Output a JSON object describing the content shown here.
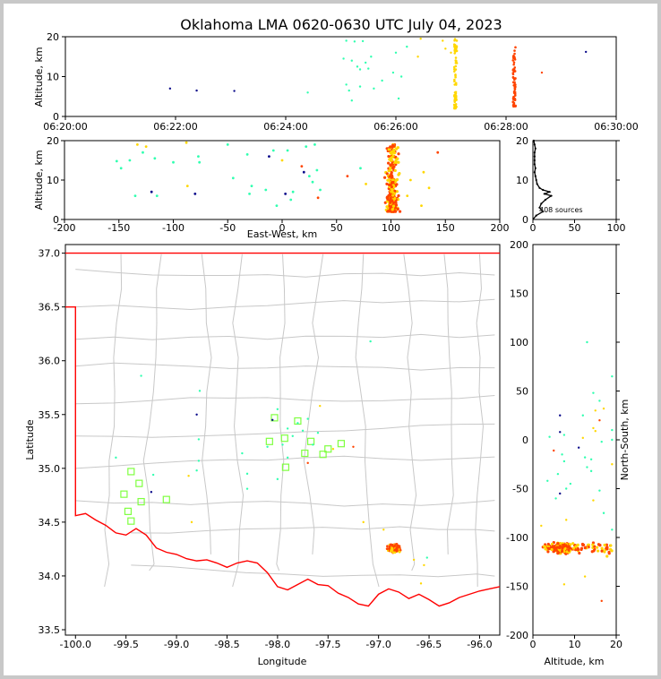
{
  "title": "Oklahoma LMA 0620-0630 UTC July 04, 2023",
  "source_count_label": "408 sources",
  "colors": {
    "early": "#0a0a8a",
    "mid": "#30ffb0",
    "late": "#ffd700",
    "latest": "#ff4400",
    "stations": "#7fff40",
    "state_border": "#ff0000",
    "county": "#c8c8c8",
    "histogram": "#000000"
  },
  "chart_data": [
    {
      "id": "time_height",
      "type": "scatter",
      "ylabel": "Altitude, km",
      "xlim": [
        "06:20:00",
        "06:30:00"
      ],
      "ylim": [
        0,
        20
      ],
      "xticks": [
        "06:20:00",
        "06:22:00",
        "06:24:00",
        "06:26:00",
        "06:28:00",
        "06:30:00"
      ],
      "yticks": [
        0,
        10,
        20
      ],
      "points": [
        {
          "t": "06:21:54",
          "z": 7.0,
          "c": "early"
        },
        {
          "t": "06:22:23",
          "z": 6.5,
          "c": "early"
        },
        {
          "t": "06:23:04",
          "z": 6.4,
          "c": "early"
        },
        {
          "t": "06:24:24",
          "z": 6.0,
          "c": "mid"
        },
        {
          "t": "06:25:06",
          "z": 19.0,
          "c": "mid"
        },
        {
          "t": "06:25:15",
          "z": 18.8,
          "c": "mid"
        },
        {
          "t": "06:25:24",
          "z": 18.9,
          "c": "mid"
        },
        {
          "t": "06:25:03",
          "z": 14.5,
          "c": "mid"
        },
        {
          "t": "06:25:12",
          "z": 14.0,
          "c": "mid"
        },
        {
          "t": "06:25:18",
          "z": 12.5,
          "c": "mid"
        },
        {
          "t": "06:25:21",
          "z": 11.8,
          "c": "mid"
        },
        {
          "t": "06:25:27",
          "z": 13.5,
          "c": "mid"
        },
        {
          "t": "06:25:30",
          "z": 12.0,
          "c": "mid"
        },
        {
          "t": "06:25:33",
          "z": 15.0,
          "c": "mid"
        },
        {
          "t": "06:25:06",
          "z": 8.0,
          "c": "mid"
        },
        {
          "t": "06:25:09",
          "z": 6.5,
          "c": "mid"
        },
        {
          "t": "06:25:21",
          "z": 7.5,
          "c": "mid"
        },
        {
          "t": "06:25:36",
          "z": 7.0,
          "c": "mid"
        },
        {
          "t": "06:25:45",
          "z": 9.0,
          "c": "mid"
        },
        {
          "t": "06:25:12",
          "z": 4.0,
          "c": "mid"
        },
        {
          "t": "06:26:06",
          "z": 10.0,
          "c": "mid"
        },
        {
          "t": "06:26:03",
          "z": 4.5,
          "c": "mid"
        },
        {
          "t": "06:25:57",
          "z": 11.0,
          "c": "mid"
        },
        {
          "t": "06:26:00",
          "z": 16.0,
          "c": "mid"
        },
        {
          "t": "06:26:12",
          "z": 17.5,
          "c": "mid"
        },
        {
          "t": "06:26:24",
          "z": 15.0,
          "c": "late"
        },
        {
          "t": "06:26:27",
          "z": 19.5,
          "c": "late"
        },
        {
          "t": "06:26:51",
          "z": 19.0,
          "c": "late"
        },
        {
          "t": "06:26:54",
          "z": 17.0,
          "c": "late"
        },
        {
          "t": "06:27:00",
          "z": 16.0,
          "c": "late"
        },
        {
          "t": "06:28:39",
          "z": 11.0,
          "c": "latest"
        },
        {
          "t": "06:29:27",
          "z": 16.2,
          "c": "early"
        }
      ],
      "columns": [
        {
          "t": "06:27:05",
          "zmin": 2.0,
          "zmax": 19.5,
          "c": "late"
        },
        {
          "t": "06:28:09",
          "zmin": 2.5,
          "zmax": 17.5,
          "c": "latest"
        }
      ]
    },
    {
      "id": "ew_height",
      "type": "scatter",
      "xlabel": "East-West, km",
      "ylabel": "Altitude, km",
      "xlim": [
        -200,
        200
      ],
      "ylim": [
        0,
        20
      ],
      "xticks": [
        -200,
        -150,
        -100,
        -50,
        0,
        50,
        100,
        150,
        200
      ],
      "yticks": [
        0,
        10,
        20
      ],
      "points": [
        {
          "x": -152,
          "z": 14.8,
          "c": "mid"
        },
        {
          "x": -148,
          "z": 13.0,
          "c": "mid"
        },
        {
          "x": -140,
          "z": 15.0,
          "c": "mid"
        },
        {
          "x": -135,
          "z": 6.0,
          "c": "mid"
        },
        {
          "x": -133,
          "z": 19.0,
          "c": "late"
        },
        {
          "x": -128,
          "z": 17.0,
          "c": "mid"
        },
        {
          "x": -125,
          "z": 18.5,
          "c": "late"
        },
        {
          "x": -120,
          "z": 7.0,
          "c": "early"
        },
        {
          "x": -117,
          "z": 15.5,
          "c": "mid"
        },
        {
          "x": -115,
          "z": 6.0,
          "c": "mid"
        },
        {
          "x": -100,
          "z": 14.5,
          "c": "mid"
        },
        {
          "x": -88,
          "z": 19.5,
          "c": "late"
        },
        {
          "x": -87,
          "z": 8.5,
          "c": "late"
        },
        {
          "x": -80,
          "z": 6.5,
          "c": "early"
        },
        {
          "x": -77,
          "z": 16.0,
          "c": "mid"
        },
        {
          "x": -76,
          "z": 14.5,
          "c": "mid"
        },
        {
          "x": -50,
          "z": 19.0,
          "c": "mid"
        },
        {
          "x": -45,
          "z": 10.5,
          "c": "mid"
        },
        {
          "x": -32,
          "z": 16.5,
          "c": "mid"
        },
        {
          "x": -30,
          "z": 6.5,
          "c": "mid"
        },
        {
          "x": -28,
          "z": 8.5,
          "c": "mid"
        },
        {
          "x": -15,
          "z": 7.5,
          "c": "mid"
        },
        {
          "x": -12,
          "z": 16.0,
          "c": "early"
        },
        {
          "x": -8,
          "z": 17.5,
          "c": "mid"
        },
        {
          "x": -5,
          "z": 3.5,
          "c": "mid"
        },
        {
          "x": 0,
          "z": 15.0,
          "c": "late"
        },
        {
          "x": 3,
          "z": 6.5,
          "c": "early"
        },
        {
          "x": 5,
          "z": 17.5,
          "c": "mid"
        },
        {
          "x": 8,
          "z": 5.0,
          "c": "mid"
        },
        {
          "x": 10,
          "z": 7.0,
          "c": "mid"
        },
        {
          "x": 18,
          "z": 13.5,
          "c": "latest"
        },
        {
          "x": 20,
          "z": 12.0,
          "c": "early"
        },
        {
          "x": 22,
          "z": 18.5,
          "c": "mid"
        },
        {
          "x": 25,
          "z": 11.0,
          "c": "mid"
        },
        {
          "x": 28,
          "z": 9.5,
          "c": "mid"
        },
        {
          "x": 30,
          "z": 19.0,
          "c": "mid"
        },
        {
          "x": 32,
          "z": 12.5,
          "c": "mid"
        },
        {
          "x": 33,
          "z": 5.5,
          "c": "latest"
        },
        {
          "x": 35,
          "z": 7.5,
          "c": "mid"
        },
        {
          "x": 60,
          "z": 11.0,
          "c": "latest"
        },
        {
          "x": 72,
          "z": 13.0,
          "c": "mid"
        },
        {
          "x": 77,
          "z": 9.0,
          "c": "late"
        },
        {
          "x": 130,
          "z": 12.0,
          "c": "late"
        },
        {
          "x": 128,
          "z": 3.5,
          "c": "late"
        },
        {
          "x": 135,
          "z": 8.0,
          "c": "late"
        },
        {
          "x": 143,
          "z": 17.0,
          "c": "latest"
        },
        {
          "x": 118,
          "z": 10.0,
          "c": "late"
        },
        {
          "x": 115,
          "z": 6.0,
          "c": "late"
        }
      ],
      "cluster": {
        "x_center": 101,
        "x_spread": 10,
        "zmin": 2,
        "zmax": 19,
        "count": 300
      }
    },
    {
      "id": "altitude_histogram",
      "type": "line",
      "xlim": [
        0,
        100
      ],
      "ylim": [
        0,
        20
      ],
      "xticks": [
        0,
        50,
        100
      ],
      "yticks": [
        0,
        10,
        20
      ],
      "profile": [
        {
          "z": 1,
          "n": 4
        },
        {
          "z": 2,
          "n": 12
        },
        {
          "z": 3,
          "n": 8
        },
        {
          "z": 4,
          "n": 10
        },
        {
          "z": 5,
          "n": 15
        },
        {
          "z": 6,
          "n": 22
        },
        {
          "z": 6.5,
          "n": 14
        },
        {
          "z": 7,
          "n": 20
        },
        {
          "z": 7.5,
          "n": 12
        },
        {
          "z": 8,
          "n": 8
        },
        {
          "z": 9,
          "n": 5
        },
        {
          "z": 10,
          "n": 4
        },
        {
          "z": 11,
          "n": 3
        },
        {
          "z": 12,
          "n": 2
        },
        {
          "z": 13,
          "n": 3
        },
        {
          "z": 14,
          "n": 2
        },
        {
          "z": 15,
          "n": 2
        },
        {
          "z": 16,
          "n": 2
        },
        {
          "z": 17,
          "n": 2
        },
        {
          "z": 18,
          "n": 3
        },
        {
          "z": 19,
          "n": 2
        },
        {
          "z": 20,
          "n": 1
        }
      ]
    },
    {
      "id": "plan_view",
      "type": "scatter",
      "xlabel": "Longitude",
      "ylabel": "Latitude",
      "xlim": [
        -100.1,
        -95.8
      ],
      "ylim": [
        33.45,
        37.08
      ],
      "xticks": [
        -100.0,
        -99.5,
        -99.0,
        -98.5,
        -98.0,
        -97.5,
        -97.0,
        -96.5,
        -96.0
      ],
      "yticks": [
        33.5,
        34.0,
        34.5,
        35.0,
        35.5,
        36.0,
        36.5,
        37.0
      ],
      "stations": [
        [
          -99.45,
          34.97
        ],
        [
          -99.37,
          34.86
        ],
        [
          -99.52,
          34.76
        ],
        [
          -99.35,
          34.69
        ],
        [
          -99.48,
          34.6
        ],
        [
          -99.45,
          34.51
        ],
        [
          -99.1,
          34.71
        ],
        [
          -98.03,
          35.47
        ],
        [
          -98.08,
          35.25
        ],
        [
          -97.93,
          35.28
        ],
        [
          -97.92,
          35.01
        ],
        [
          -97.8,
          35.44
        ],
        [
          -97.73,
          35.14
        ],
        [
          -97.67,
          35.25
        ],
        [
          -97.55,
          35.13
        ],
        [
          -97.5,
          35.18
        ],
        [
          -97.37,
          35.23
        ]
      ],
      "points": [
        {
          "x": -98.8,
          "y": 35.5,
          "c": "early"
        },
        {
          "x": -99.25,
          "y": 34.78,
          "c": "early"
        },
        {
          "x": -98.0,
          "y": 35.55,
          "c": "mid"
        },
        {
          "x": -97.8,
          "y": 35.42,
          "c": "mid"
        },
        {
          "x": -97.7,
          "y": 35.46,
          "c": "mid"
        },
        {
          "x": -97.9,
          "y": 35.37,
          "c": "mid"
        },
        {
          "x": -97.75,
          "y": 35.35,
          "c": "mid"
        },
        {
          "x": -97.85,
          "y": 35.3,
          "c": "mid"
        },
        {
          "x": -97.6,
          "y": 35.33,
          "c": "mid"
        },
        {
          "x": -98.1,
          "y": 35.2,
          "c": "mid"
        },
        {
          "x": -97.65,
          "y": 35.22,
          "c": "mid"
        },
        {
          "x": -97.95,
          "y": 35.22,
          "c": "mid"
        },
        {
          "x": -97.7,
          "y": 35.05,
          "c": "latest"
        },
        {
          "x": -98.05,
          "y": 35.45,
          "c": "early"
        },
        {
          "x": -97.45,
          "y": 35.18,
          "c": "late"
        },
        {
          "x": -97.25,
          "y": 35.2,
          "c": "latest"
        },
        {
          "x": -98.35,
          "y": 35.14,
          "c": "mid"
        },
        {
          "x": -98.3,
          "y": 34.95,
          "c": "mid"
        },
        {
          "x": -98.3,
          "y": 34.81,
          "c": "mid"
        },
        {
          "x": -98.0,
          "y": 34.9,
          "c": "mid"
        },
        {
          "x": -98.78,
          "y": 35.27,
          "c": "mid"
        },
        {
          "x": -98.78,
          "y": 35.07,
          "c": "mid"
        },
        {
          "x": -98.8,
          "y": 34.98,
          "c": "mid"
        },
        {
          "x": -99.35,
          "y": 35.86,
          "c": "mid"
        },
        {
          "x": -99.23,
          "y": 34.94,
          "c": "mid"
        },
        {
          "x": -99.6,
          "y": 35.1,
          "c": "mid"
        },
        {
          "x": -98.77,
          "y": 35.72,
          "c": "mid"
        },
        {
          "x": -97.08,
          "y": 36.18,
          "c": "mid"
        },
        {
          "x": -98.85,
          "y": 34.5,
          "c": "late"
        },
        {
          "x": -98.88,
          "y": 34.93,
          "c": "late"
        },
        {
          "x": -97.15,
          "y": 34.5,
          "c": "late"
        },
        {
          "x": -96.65,
          "y": 34.15,
          "c": "late"
        },
        {
          "x": -96.55,
          "y": 34.1,
          "c": "late"
        },
        {
          "x": -96.58,
          "y": 33.93,
          "c": "late"
        },
        {
          "x": -96.95,
          "y": 34.43,
          "c": "late"
        },
        {
          "x": -96.52,
          "y": 34.17,
          "c": "mid"
        },
        {
          "x": -97.9,
          "y": 35.1,
          "c": "mid"
        },
        {
          "x": -97.58,
          "y": 35.58,
          "c": "late"
        }
      ],
      "cluster": {
        "x_center": -96.85,
        "y_center": 34.26,
        "x_spread": 0.09,
        "y_spread": 0.06,
        "count": 220
      }
    },
    {
      "id": "altitude_ns",
      "type": "scatter",
      "xlabel": "Altitude, km",
      "ylabel": "North-South, km",
      "xlim": [
        0,
        20
      ],
      "ylim": [
        -200,
        200
      ],
      "xticks": [
        0,
        10,
        20
      ],
      "yticks": [
        -200,
        -150,
        -100,
        -50,
        0,
        50,
        100,
        150,
        200
      ],
      "points": [
        {
          "x": 13,
          "y": 100,
          "c": "mid"
        },
        {
          "x": 19,
          "y": 65,
          "c": "mid"
        },
        {
          "x": 14.5,
          "y": 48,
          "c": "mid"
        },
        {
          "x": 16,
          "y": 40,
          "c": "mid"
        },
        {
          "x": 17,
          "y": 32,
          "c": "late"
        },
        {
          "x": 15,
          "y": 30,
          "c": "late"
        },
        {
          "x": 6.5,
          "y": 25,
          "c": "early"
        },
        {
          "x": 12,
          "y": 25,
          "c": "mid"
        },
        {
          "x": 16,
          "y": 20,
          "c": "latest"
        },
        {
          "x": 14.5,
          "y": 12,
          "c": "late"
        },
        {
          "x": 19,
          "y": 10,
          "c": "mid"
        },
        {
          "x": 15,
          "y": 9,
          "c": "late"
        },
        {
          "x": 6.5,
          "y": 8,
          "c": "early"
        },
        {
          "x": 7.5,
          "y": 5,
          "c": "mid"
        },
        {
          "x": 4,
          "y": 3,
          "c": "mid"
        },
        {
          "x": 12,
          "y": 2,
          "c": "late"
        },
        {
          "x": 19,
          "y": 0,
          "c": "mid"
        },
        {
          "x": 16.5,
          "y": -2,
          "c": "mid"
        },
        {
          "x": 11,
          "y": -8,
          "c": "early"
        },
        {
          "x": 5,
          "y": -11,
          "c": "latest"
        },
        {
          "x": 7,
          "y": -15,
          "c": "mid"
        },
        {
          "x": 12.5,
          "y": -18,
          "c": "mid"
        },
        {
          "x": 14,
          "y": -20,
          "c": "mid"
        },
        {
          "x": 7.5,
          "y": -22,
          "c": "mid"
        },
        {
          "x": 19,
          "y": -25,
          "c": "late"
        },
        {
          "x": 13,
          "y": -28,
          "c": "mid"
        },
        {
          "x": 14,
          "y": -32,
          "c": "mid"
        },
        {
          "x": 6,
          "y": -35,
          "c": "mid"
        },
        {
          "x": 3.5,
          "y": -42,
          "c": "mid"
        },
        {
          "x": 9,
          "y": -45,
          "c": "mid"
        },
        {
          "x": 8,
          "y": -50,
          "c": "mid"
        },
        {
          "x": 16,
          "y": -52,
          "c": "mid"
        },
        {
          "x": 6.5,
          "y": -55,
          "c": "early"
        },
        {
          "x": 5.5,
          "y": -60,
          "c": "mid"
        },
        {
          "x": 14.5,
          "y": -62,
          "c": "late"
        },
        {
          "x": 17,
          "y": -75,
          "c": "mid"
        },
        {
          "x": 8,
          "y": -82,
          "c": "late"
        },
        {
          "x": 2,
          "y": -88,
          "c": "late"
        },
        {
          "x": 19,
          "y": -92,
          "c": "mid"
        },
        {
          "x": 7.5,
          "y": -148,
          "c": "late"
        },
        {
          "x": 16.5,
          "y": -165,
          "c": "latest"
        },
        {
          "x": 12.5,
          "y": -140,
          "c": "late"
        }
      ],
      "cluster": {
        "x_center": 7,
        "x_spread": 6.5,
        "y_center": -111,
        "y_spread": 10,
        "count": 260
      }
    }
  ]
}
